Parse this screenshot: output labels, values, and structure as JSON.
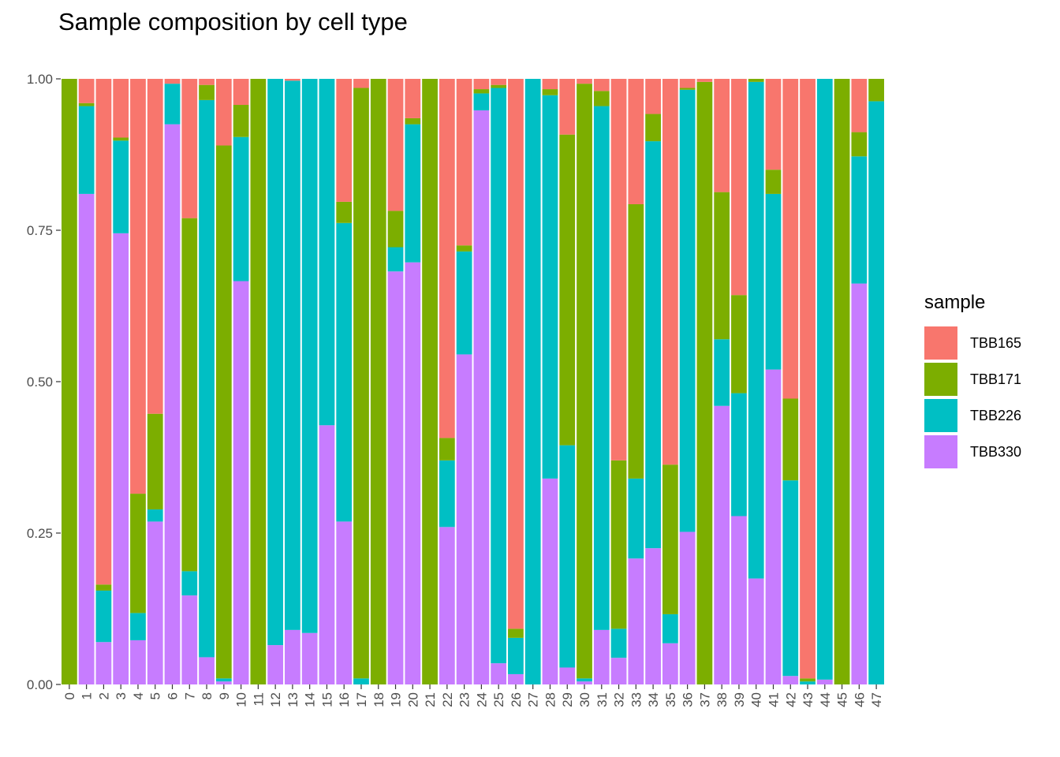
{
  "chart_data": {
    "type": "bar",
    "stacked": true,
    "title": "Sample composition by cell type",
    "xlabel": "",
    "ylabel": "",
    "ylim": [
      0,
      1
    ],
    "yticks": [
      "0.00",
      "0.25",
      "0.50",
      "0.75",
      "1.00"
    ],
    "grid": false,
    "legend_title": "sample",
    "legend_position": "right",
    "categories": [
      "0",
      "1",
      "2",
      "3",
      "4",
      "5",
      "6",
      "7",
      "8",
      "9",
      "10",
      "11",
      "12",
      "13",
      "14",
      "15",
      "16",
      "17",
      "18",
      "19",
      "20",
      "21",
      "22",
      "23",
      "24",
      "25",
      "26",
      "27",
      "28",
      "29",
      "30",
      "31",
      "32",
      "33",
      "34",
      "35",
      "36",
      "37",
      "38",
      "39",
      "40",
      "41",
      "42",
      "43",
      "44",
      "45",
      "46",
      "47"
    ],
    "series": [
      {
        "name": "TBB165",
        "color": "#F8766D",
        "values": [
          0,
          0.04,
          0.835,
          0.097,
          0.685,
          0.553,
          0.008,
          0.23,
          0.01,
          0.11,
          0.043,
          0,
          0,
          0.003,
          0,
          0,
          0.203,
          0.015,
          0,
          0.218,
          0.065,
          0,
          0.593,
          0.275,
          0.017,
          0.01,
          0.908,
          0,
          0.017,
          0.092,
          0.008,
          0.02,
          0.63,
          0.207,
          0.058,
          0.637,
          0.015,
          0.005,
          0.187,
          0.357,
          0,
          0.15,
          0.528,
          0.99,
          0,
          0,
          0.088,
          0
        ]
      },
      {
        "name": "TBB171",
        "color": "#7CAE00",
        "values": [
          1,
          0.005,
          0.01,
          0.005,
          0.197,
          0.158,
          0,
          0.583,
          0.025,
          0.88,
          0.053,
          1,
          0,
          0,
          0,
          0,
          0.035,
          0.975,
          1,
          0.06,
          0.01,
          1,
          0.037,
          0.01,
          0.007,
          0.005,
          0.015,
          0,
          0.01,
          0.513,
          0.982,
          0.025,
          0.278,
          0.453,
          0.045,
          0.247,
          0.003,
          0.995,
          0.243,
          0.162,
          0.005,
          0.04,
          0.135,
          0.005,
          0,
          1,
          0.04,
          0.037
        ]
      },
      {
        "name": "TBB226",
        "color": "#00BFC4",
        "values": [
          0,
          0.145,
          0.085,
          0.153,
          0.045,
          0.02,
          0.067,
          0.04,
          0.92,
          0.005,
          0.238,
          0,
          0.935,
          0.907,
          0.915,
          0.572,
          0.493,
          0.01,
          0,
          0.04,
          0.228,
          0,
          0.11,
          0.17,
          0.028,
          0.95,
          0.06,
          1,
          0.633,
          0.367,
          0.005,
          0.865,
          0.048,
          0.132,
          0.672,
          0.048,
          0.73,
          0,
          0.11,
          0.203,
          0.82,
          0.29,
          0.323,
          0.005,
          0.992,
          0,
          0.21,
          0.963
        ]
      },
      {
        "name": "TBB330",
        "color": "#C77CFF",
        "values": [
          0,
          0.81,
          0.07,
          0.745,
          0.073,
          0.269,
          0.925,
          0.147,
          0.045,
          0.005,
          0.666,
          0,
          0.065,
          0.09,
          0.085,
          0.428,
          0.269,
          0,
          0,
          0.682,
          0.697,
          0,
          0.26,
          0.545,
          0.948,
          0.035,
          0.017,
          0,
          0.34,
          0.028,
          0.005,
          0.09,
          0.044,
          0.208,
          0.225,
          0.068,
          0.252,
          0,
          0.46,
          0.278,
          0.175,
          0.52,
          0.014,
          0,
          0.008,
          0,
          0.662,
          0
        ]
      }
    ]
  }
}
